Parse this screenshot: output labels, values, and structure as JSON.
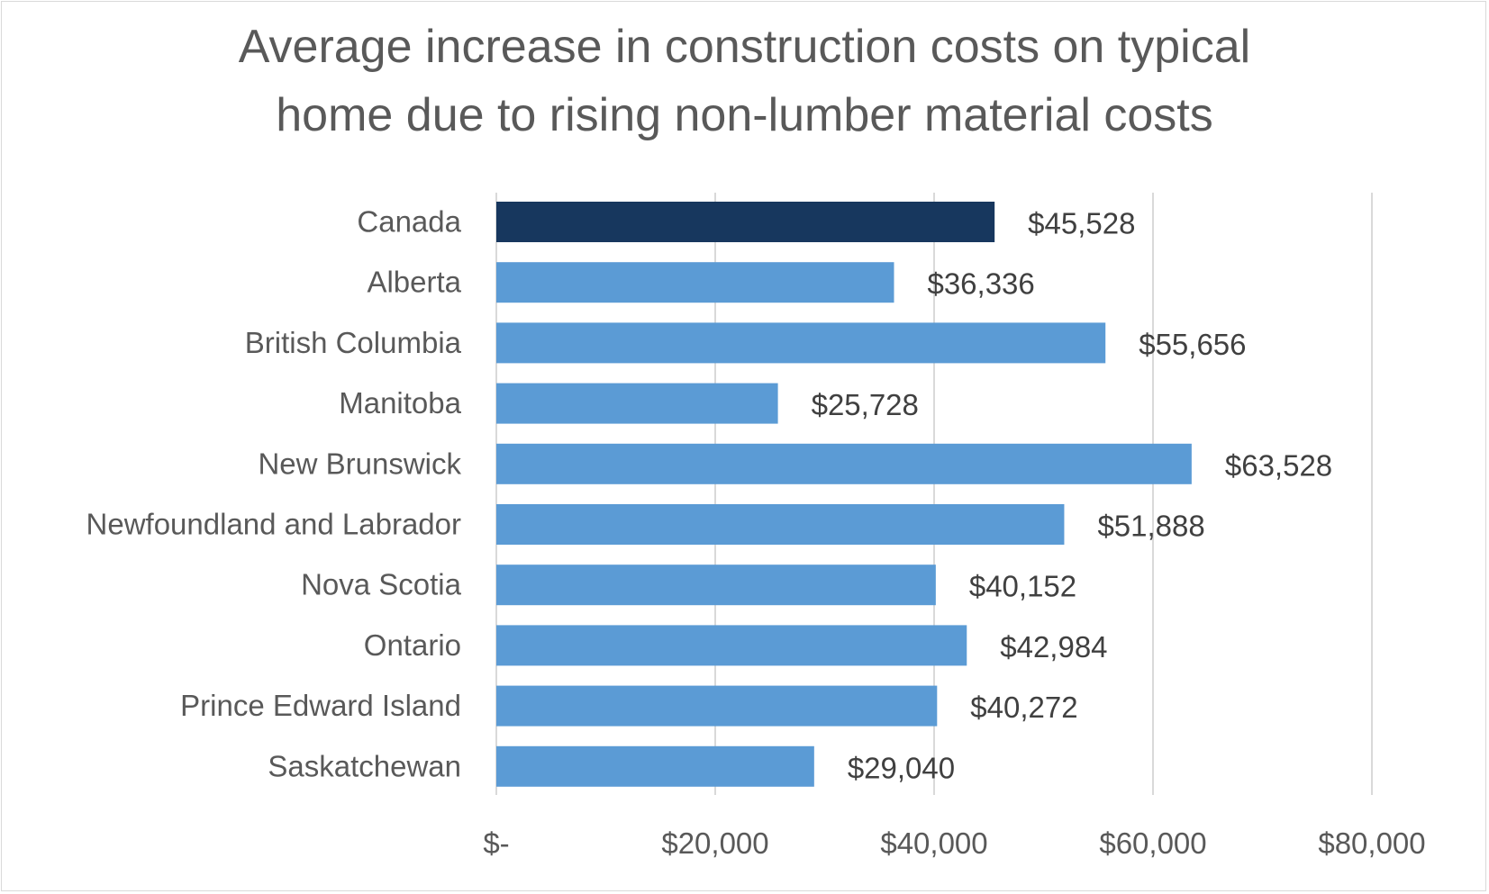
{
  "chart_data": {
    "type": "bar",
    "orientation": "horizontal",
    "title_lines": [
      "Average increase in construction costs on typical",
      "home due to rising non-lumber material costs"
    ],
    "categories": [
      "Canada",
      "Alberta",
      "British Columbia",
      "Manitoba",
      "New Brunswick",
      "Newfoundland and Labrador",
      "Nova Scotia",
      "Ontario",
      "Prince Edward Island",
      "Saskatchewan"
    ],
    "values": [
      45528,
      36336,
      55656,
      25728,
      63528,
      51888,
      40152,
      42984,
      40272,
      29040
    ],
    "value_labels": [
      "$45,528",
      "$36,336",
      "$55,656",
      "$25,728",
      "$63,528",
      "$51,888",
      "$40,152",
      "$42,984",
      "$40,272",
      "$29,040"
    ],
    "xlim": [
      0,
      80000
    ],
    "x_ticks": [
      0,
      20000,
      40000,
      60000,
      80000
    ],
    "x_tick_labels": [
      "$-",
      "$20,000",
      "$40,000",
      "$60,000",
      "$80,000"
    ],
    "grid": "vertical",
    "colors": {
      "highlight": "#17375e",
      "default": "#5b9bd5",
      "grid": "#d9d9d9"
    }
  }
}
